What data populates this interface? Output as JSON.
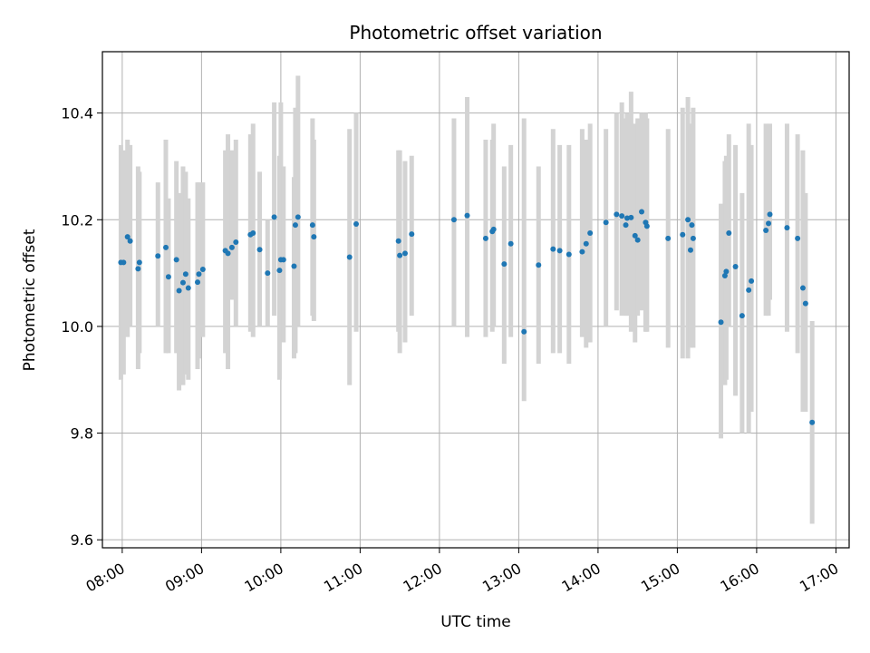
{
  "chart_data": {
    "type": "scatter",
    "title": "Photometric offset variation",
    "xlabel": "UTC time",
    "ylabel": "Photometric offset",
    "x_tick_labels": [
      "08:00",
      "09:00",
      "10:00",
      "11:00",
      "12:00",
      "13:00",
      "14:00",
      "15:00",
      "16:00",
      "17:00"
    ],
    "y_tick_labels": [
      "9.6",
      "9.8",
      "10.0",
      "10.2",
      "10.4"
    ],
    "x_tick_values": [
      "08:00",
      "09:00",
      "10:00",
      "11:00",
      "12:00",
      "13:00",
      "14:00",
      "15:00",
      "16:00",
      "17:00"
    ],
    "y_tick_values": [
      9.6,
      9.8,
      10.0,
      10.2,
      10.4
    ],
    "xlim": [
      "07:45",
      "17:10"
    ],
    "ylim": [
      9.585,
      10.515
    ],
    "grid": true,
    "colors": {
      "point": "#1f77b4",
      "errorbar": "#d3d3d3",
      "grid": "#b0b0b0"
    },
    "series": [
      {
        "x": [
          "07:59",
          "08:01",
          "08:04",
          "08:06",
          "08:12",
          "08:13",
          "08:27",
          "08:33",
          "08:35",
          "08:41",
          "08:43",
          "08:46",
          "08:48",
          "08:50",
          "08:57",
          "08:58",
          "09:01",
          "09:18",
          "09:20",
          "09:23",
          "09:26",
          "09:37",
          "09:39",
          "09:44",
          "09:50",
          "09:55",
          "09:59",
          "10:00",
          "10:02",
          "10:10",
          "10:11",
          "10:13",
          "10:24",
          "10:25",
          "10:52",
          "10:57",
          "11:29",
          "11:30",
          "11:34",
          "11:39",
          "12:11",
          "12:21",
          "12:35",
          "12:40",
          "12:41",
          "12:49",
          "12:54",
          "13:04",
          "13:15",
          "13:26",
          "13:31",
          "13:38",
          "13:48",
          "13:51",
          "13:54",
          "14:06",
          "14:14",
          "14:18",
          "14:21",
          "14:22",
          "14:25",
          "14:28",
          "14:30",
          "14:33",
          "14:36",
          "14:37",
          "14:53",
          "15:04",
          "15:08",
          "15:10",
          "15:11",
          "15:12",
          "15:33",
          "15:36",
          "15:37",
          "15:39",
          "15:44",
          "15:49",
          "15:54",
          "15:56",
          "16:07",
          "16:09",
          "16:10",
          "16:23",
          "16:31",
          "16:35",
          "16:37",
          "16:42"
        ],
        "y": [
          10.12,
          10.12,
          10.168,
          10.16,
          10.108,
          10.12,
          10.132,
          10.148,
          10.093,
          10.125,
          10.067,
          10.082,
          10.098,
          10.072,
          10.083,
          10.098,
          10.107,
          10.142,
          10.137,
          10.148,
          10.158,
          10.172,
          10.175,
          10.144,
          10.1,
          10.205,
          10.105,
          10.125,
          10.125,
          10.113,
          10.19,
          10.205,
          10.19,
          10.168,
          10.13,
          10.192,
          10.16,
          10.133,
          10.137,
          10.173,
          10.2,
          10.208,
          10.165,
          10.178,
          10.182,
          10.117,
          10.155,
          9.99,
          10.115,
          10.145,
          10.142,
          10.135,
          10.14,
          10.155,
          10.175,
          10.195,
          10.21,
          10.207,
          10.19,
          10.203,
          10.204,
          10.17,
          10.162,
          10.215,
          10.195,
          10.188,
          10.165,
          10.172,
          10.2,
          10.143,
          10.19,
          10.165,
          10.008,
          10.095,
          10.103,
          10.175,
          10.112,
          10.02,
          10.068,
          10.085,
          10.18,
          10.193,
          10.21,
          10.185,
          10.165,
          10.072,
          10.043,
          9.82
        ],
        "yerr_low": [
          9.9,
          9.91,
          9.98,
          10.0,
          9.92,
          9.95,
          10.0,
          9.95,
          9.95,
          9.95,
          9.88,
          9.89,
          9.91,
          9.9,
          9.92,
          9.94,
          9.98,
          9.95,
          9.92,
          10.05,
          10.0,
          9.99,
          9.98,
          10.0,
          10.0,
          10.02,
          9.9,
          9.98,
          9.97,
          9.94,
          9.95,
          10.0,
          10.02,
          10.01,
          9.89,
          9.99,
          9.99,
          9.95,
          9.97,
          10.02,
          10.0,
          9.98,
          9.98,
          9.99,
          10.0,
          9.93,
          9.98,
          9.86,
          9.93,
          9.95,
          9.95,
          9.93,
          9.98,
          9.96,
          9.97,
          10.0,
          10.03,
          10.02,
          10.02,
          10.02,
          9.99,
          9.97,
          10.02,
          10.03,
          9.99,
          9.99,
          9.96,
          9.94,
          9.94,
          9.96,
          9.97,
          9.96,
          9.79,
          9.89,
          9.9,
          10.0,
          9.87,
          9.8,
          9.8,
          9.84,
          10.02,
          10.02,
          10.05,
          9.99,
          9.95,
          9.84,
          9.84,
          9.63
        ],
        "yerr_high": [
          10.34,
          10.33,
          10.35,
          10.34,
          10.3,
          10.29,
          10.27,
          10.35,
          10.24,
          10.31,
          10.25,
          10.3,
          10.29,
          10.24,
          10.27,
          10.27,
          10.27,
          10.33,
          10.36,
          10.33,
          10.35,
          10.36,
          10.38,
          10.29,
          10.2,
          10.42,
          10.32,
          10.42,
          10.3,
          10.28,
          10.41,
          10.47,
          10.39,
          10.35,
          10.37,
          10.4,
          10.33,
          10.33,
          10.31,
          10.32,
          10.39,
          10.43,
          10.35,
          10.35,
          10.38,
          10.3,
          10.34,
          10.39,
          10.3,
          10.37,
          10.34,
          10.34,
          10.37,
          10.35,
          10.38,
          10.37,
          10.4,
          10.42,
          10.39,
          10.4,
          10.44,
          10.38,
          10.39,
          10.4,
          10.4,
          10.39,
          10.37,
          10.41,
          10.43,
          10.37,
          10.38,
          10.41,
          10.23,
          10.31,
          10.32,
          10.36,
          10.34,
          10.25,
          10.38,
          10.34,
          10.38,
          10.37,
          10.38,
          10.38,
          10.36,
          10.33,
          10.25,
          10.01
        ]
      }
    ]
  }
}
